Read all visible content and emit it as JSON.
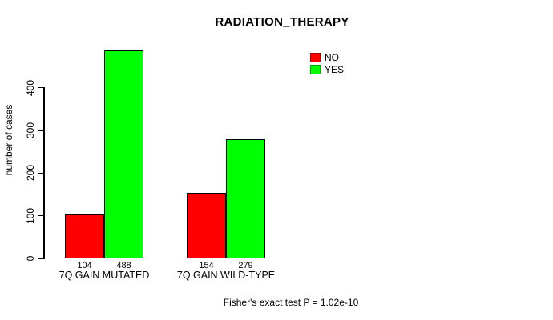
{
  "chart_data": {
    "type": "bar",
    "title": "RADIATION_THERAPY",
    "ylabel": "number of cases",
    "xlabel": "",
    "categories": [
      "7Q GAIN MUTATED",
      "7Q GAIN WILD-TYPE"
    ],
    "series": [
      {
        "name": "NO",
        "color": "#ff0000",
        "values": [
          104,
          154
        ]
      },
      {
        "name": "YES",
        "color": "#00ff00",
        "values": [
          488,
          279
        ]
      }
    ],
    "yticks": [
      0,
      100,
      200,
      300,
      400
    ],
    "ylim": [
      0,
      500
    ],
    "grid": false,
    "legend_position": "top-right",
    "bar_border_color": "#000000",
    "annotation": "Fisher's exact test P = 1.02e-10"
  }
}
